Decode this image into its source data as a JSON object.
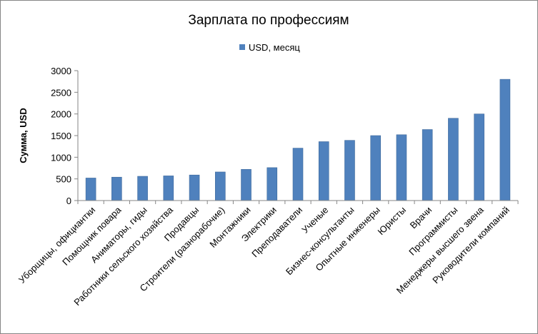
{
  "chart_data": {
    "type": "bar",
    "title": "Зарплата по профессиям",
    "ylabel": "Сумма, USD",
    "xlabel": "",
    "ylim": [
      0,
      3000
    ],
    "yticks": [
      0,
      500,
      1000,
      1500,
      2000,
      2500,
      3000
    ],
    "grid": false,
    "legend": "top-center",
    "colors": {
      "bar": "#4f81bd",
      "bar_edge": "#3f6a9c",
      "axis": "#868686"
    },
    "categories": [
      "Уборщицы, официантки",
      "Помощник повара",
      "Аниматоры, гиды",
      "Работники сельского хозяйства",
      "Продавцы",
      "Строители (разнорабочие)",
      "Монтажники",
      "Электрики",
      "Преподаватели",
      "Ученые",
      "Бизнес-консультанты",
      "Опытные инженеры",
      "Юристы",
      "Врачи",
      "Программисты",
      "Менеджеры высшего звена",
      "Руководители компаний"
    ],
    "series": [
      {
        "name": "USD, месяц",
        "values": [
          520,
          540,
          560,
          570,
          590,
          660,
          720,
          760,
          1210,
          1360,
          1390,
          1500,
          1520,
          1640,
          1900,
          2000,
          2800
        ]
      }
    ]
  }
}
